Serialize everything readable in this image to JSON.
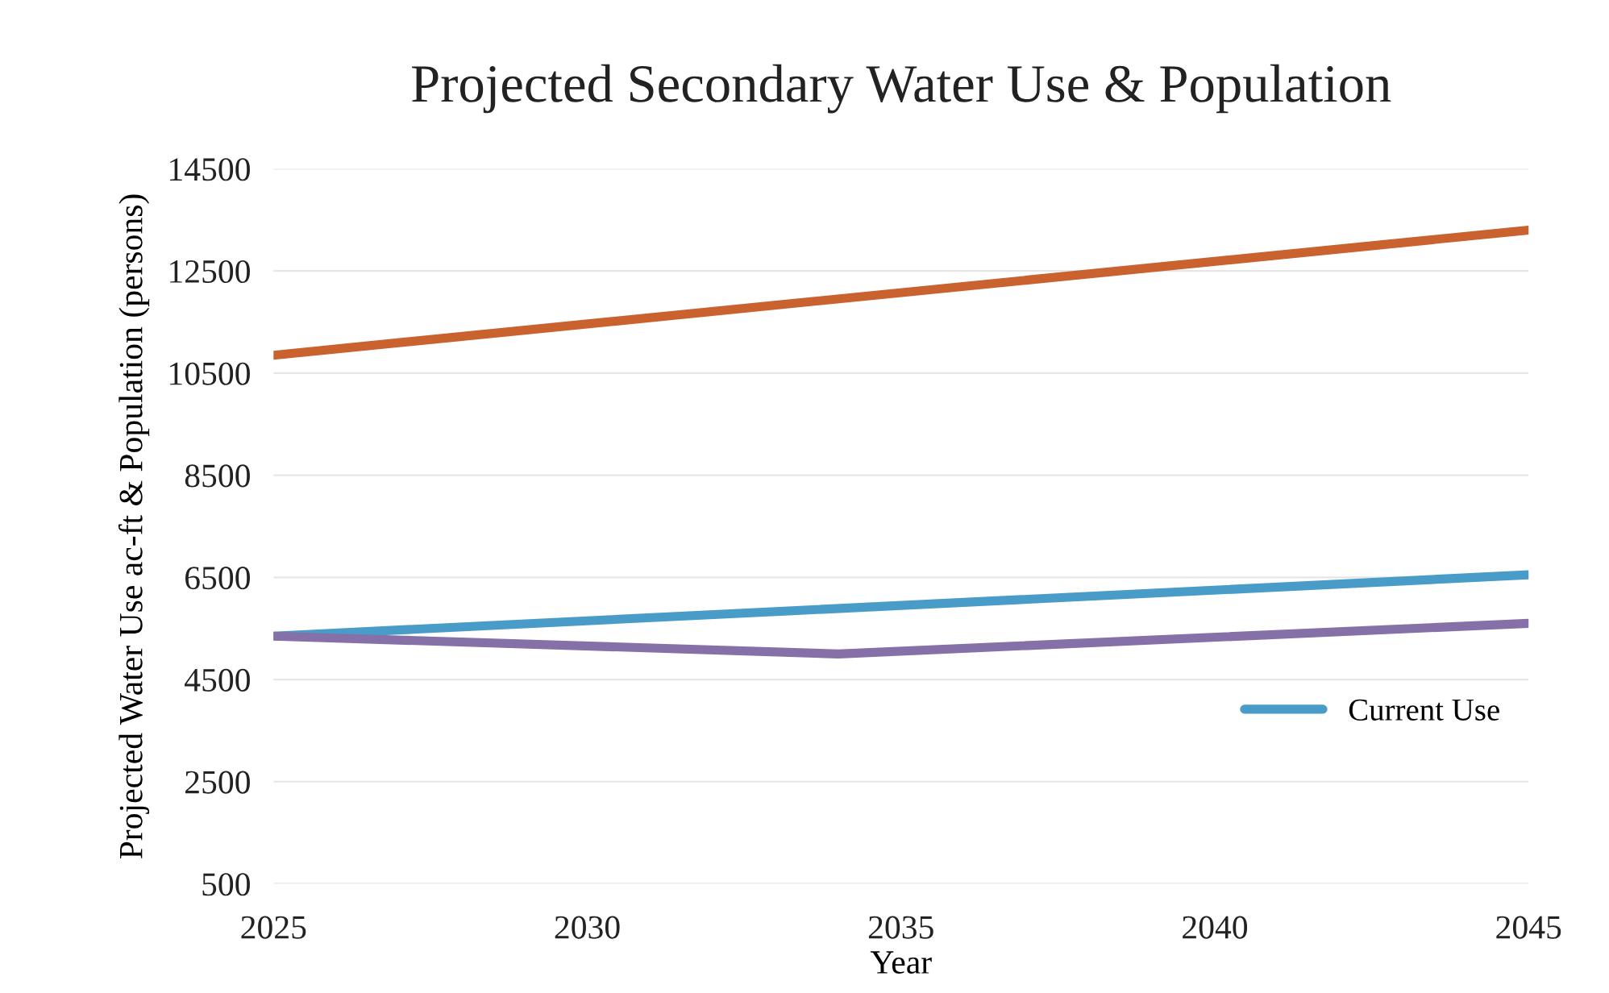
{
  "chart_data": {
    "type": "line",
    "title": "Projected Secondary Water Use & Population",
    "xlabel": "Year",
    "ylabel": "Projected Water Use ac-ft & Population (persons)",
    "xlim": [
      2025,
      2045
    ],
    "xticks": [
      2025,
      2030,
      2035,
      2040,
      2045
    ],
    "ylim": [
      500,
      14500
    ],
    "yticks": [
      500,
      2500,
      4500,
      6500,
      8500,
      10500,
      12500,
      14500
    ],
    "grid": "y",
    "legend": "bottom right",
    "marker": "none",
    "line_style": "solid",
    "series": [
      {
        "color": "#c9622f",
        "x": [
          2025,
          2045
        ],
        "values": [
          10850,
          13300
        ]
      },
      {
        "name": "Current Use",
        "color": "#4a9cc8",
        "x": [
          2025,
          2045
        ],
        "values": [
          5350,
          6550
        ]
      },
      {
        "color": "#8670a8",
        "x": [
          2025,
          2034,
          2045
        ],
        "values": [
          5350,
          5000,
          5600
        ]
      }
    ]
  }
}
